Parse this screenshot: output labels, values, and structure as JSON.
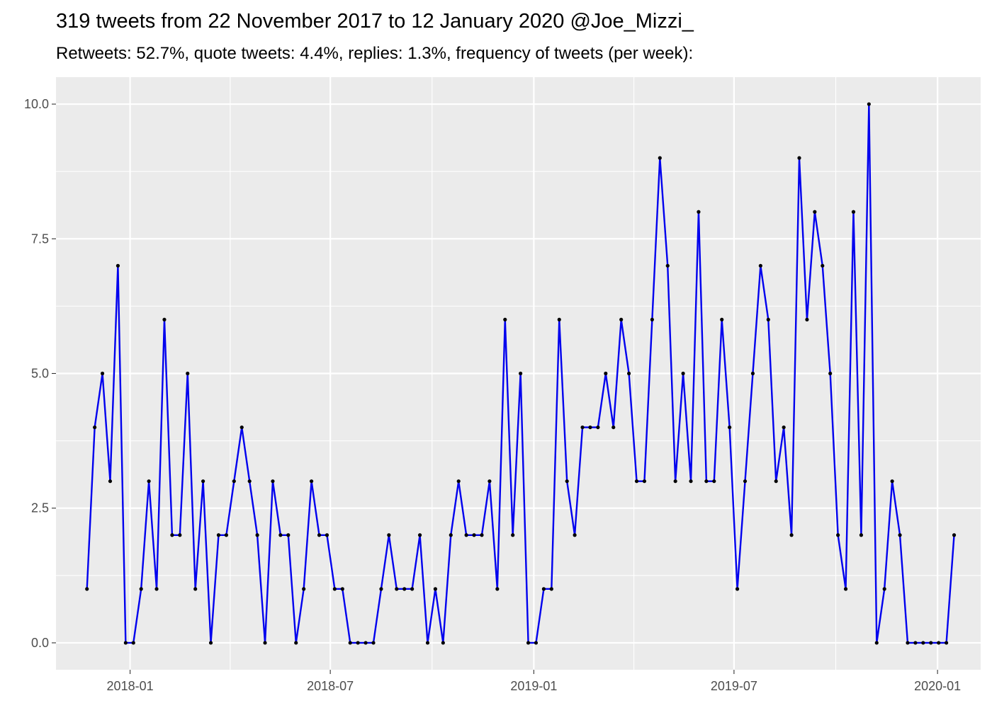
{
  "chart_data": {
    "type": "line",
    "title": "319 tweets from 22 November 2017 to 12 January 2020 @Joe_Mizzi_",
    "subtitle": "Retweets: 52.7%, quote tweets: 4.4%, replies: 1.3%, frequency of tweets (per week):",
    "xlabel": "",
    "ylabel": "",
    "x_type": "date",
    "x_start_date": "2017-11-23",
    "x_interval_days": 7,
    "xlim": [
      "2017-10-26",
      "2020-02-09"
    ],
    "ylim": [
      -0.5,
      10.5
    ],
    "x_ticks": [
      {
        "date": "2018-01-01",
        "label": "2018-01"
      },
      {
        "date": "2018-07-01",
        "label": "2018-07"
      },
      {
        "date": "2019-01-01",
        "label": "2019-01"
      },
      {
        "date": "2019-07-01",
        "label": "2019-07"
      },
      {
        "date": "2020-01-01",
        "label": "2020-01"
      }
    ],
    "y_ticks": [
      {
        "value": 0,
        "label": "0.0"
      },
      {
        "value": 2.5,
        "label": "2.5"
      },
      {
        "value": 5,
        "label": "5.0"
      },
      {
        "value": 7.5,
        "label": "7.5"
      },
      {
        "value": 10,
        "label": "10.0"
      }
    ],
    "grid": true,
    "line_color": "#0000ee",
    "point_color": "#000000",
    "panel_background": "#ebebeb",
    "values": [
      1,
      4,
      5,
      3,
      7,
      0,
      0,
      1,
      3,
      1,
      6,
      2,
      2,
      5,
      1,
      3,
      0,
      2,
      2,
      3,
      4,
      3,
      2,
      0,
      3,
      2,
      2,
      0,
      1,
      3,
      2,
      2,
      1,
      1,
      0,
      0,
      0,
      0,
      1,
      2,
      1,
      1,
      1,
      2,
      0,
      1,
      0,
      2,
      3,
      2,
      2,
      2,
      3,
      1,
      6,
      2,
      5,
      0,
      0,
      1,
      1,
      6,
      3,
      2,
      4,
      4,
      4,
      5,
      4,
      6,
      5,
      3,
      3,
      6,
      9,
      7,
      3,
      5,
      3,
      8,
      3,
      3,
      6,
      4,
      1,
      3,
      5,
      7,
      6,
      3,
      4,
      2,
      9,
      6,
      8,
      7,
      5,
      2,
      1,
      8,
      2,
      10,
      0,
      1,
      3,
      2,
      0,
      0,
      0,
      0,
      0,
      0,
      2
    ]
  }
}
